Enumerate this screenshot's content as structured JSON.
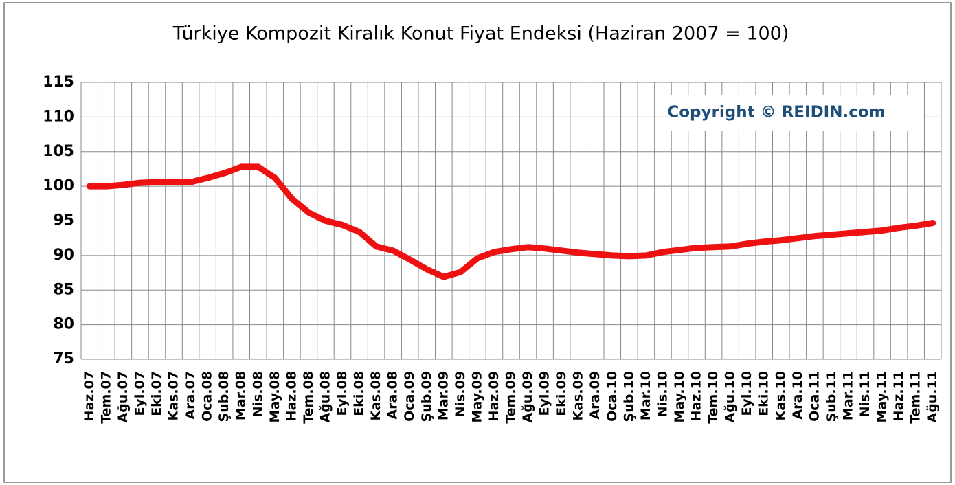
{
  "chart_data": {
    "type": "line",
    "title": "Türkiye Kompozit Kiralık Konut Fiyat Endeksi (Haziran 2007 = 100)",
    "annotation": "Copyright © REIDIN.com",
    "categories": [
      "Haz.07",
      "Tem.07",
      "Ağu.07",
      "Eyl.07",
      "Eki.07",
      "Kas.07",
      "Ara.07",
      "Oca.08",
      "Şub.08",
      "Mar.08",
      "Nis.08",
      "May.08",
      "Haz.08",
      "Tem.08",
      "Ağu.08",
      "Eyl.08",
      "Eki.08",
      "Kas.08",
      "Ara.08",
      "Oca.09",
      "Şub.09",
      "Mar.09",
      "Nis.09",
      "May.09",
      "Haz.09",
      "Tem.09",
      "Ağu.09",
      "Eyl.09",
      "Eki.09",
      "Kas.09",
      "Ara.09",
      "Oca.10",
      "Şub.10",
      "Mar.10",
      "Nis.10",
      "May.10",
      "Haz.10",
      "Tem.10",
      "Ağu.10",
      "Eyl.10",
      "Eki.10",
      "Kas.10",
      "Ara.10",
      "Oca.11",
      "Şub.11",
      "Mar.11",
      "Nis.11",
      "May.11",
      "Haz.11",
      "Tem.11",
      "Ağu.11"
    ],
    "values": [
      100,
      100,
      100.2,
      100.5,
      100.6,
      100.6,
      100.6,
      101.2,
      101.9,
      102.8,
      102.8,
      101.2,
      98.2,
      96.2,
      95.0,
      94.4,
      93.4,
      91.3,
      90.7,
      89.4,
      88.0,
      86.9,
      87.6,
      89.6,
      90.5,
      90.9,
      91.2,
      91.0,
      90.7,
      90.4,
      90.2,
      90.0,
      89.9,
      90.0,
      90.5,
      90.8,
      91.1,
      91.2,
      91.3,
      91.7,
      92.0,
      92.2,
      92.5,
      92.8,
      93.0,
      93.2,
      93.4,
      93.6,
      94.0,
      94.3,
      94.7
    ],
    "color": "#ee1111",
    "ylim": [
      75,
      115
    ],
    "yticks": [
      75,
      80,
      85,
      90,
      95,
      100,
      105,
      110,
      115
    ],
    "grid": true
  }
}
